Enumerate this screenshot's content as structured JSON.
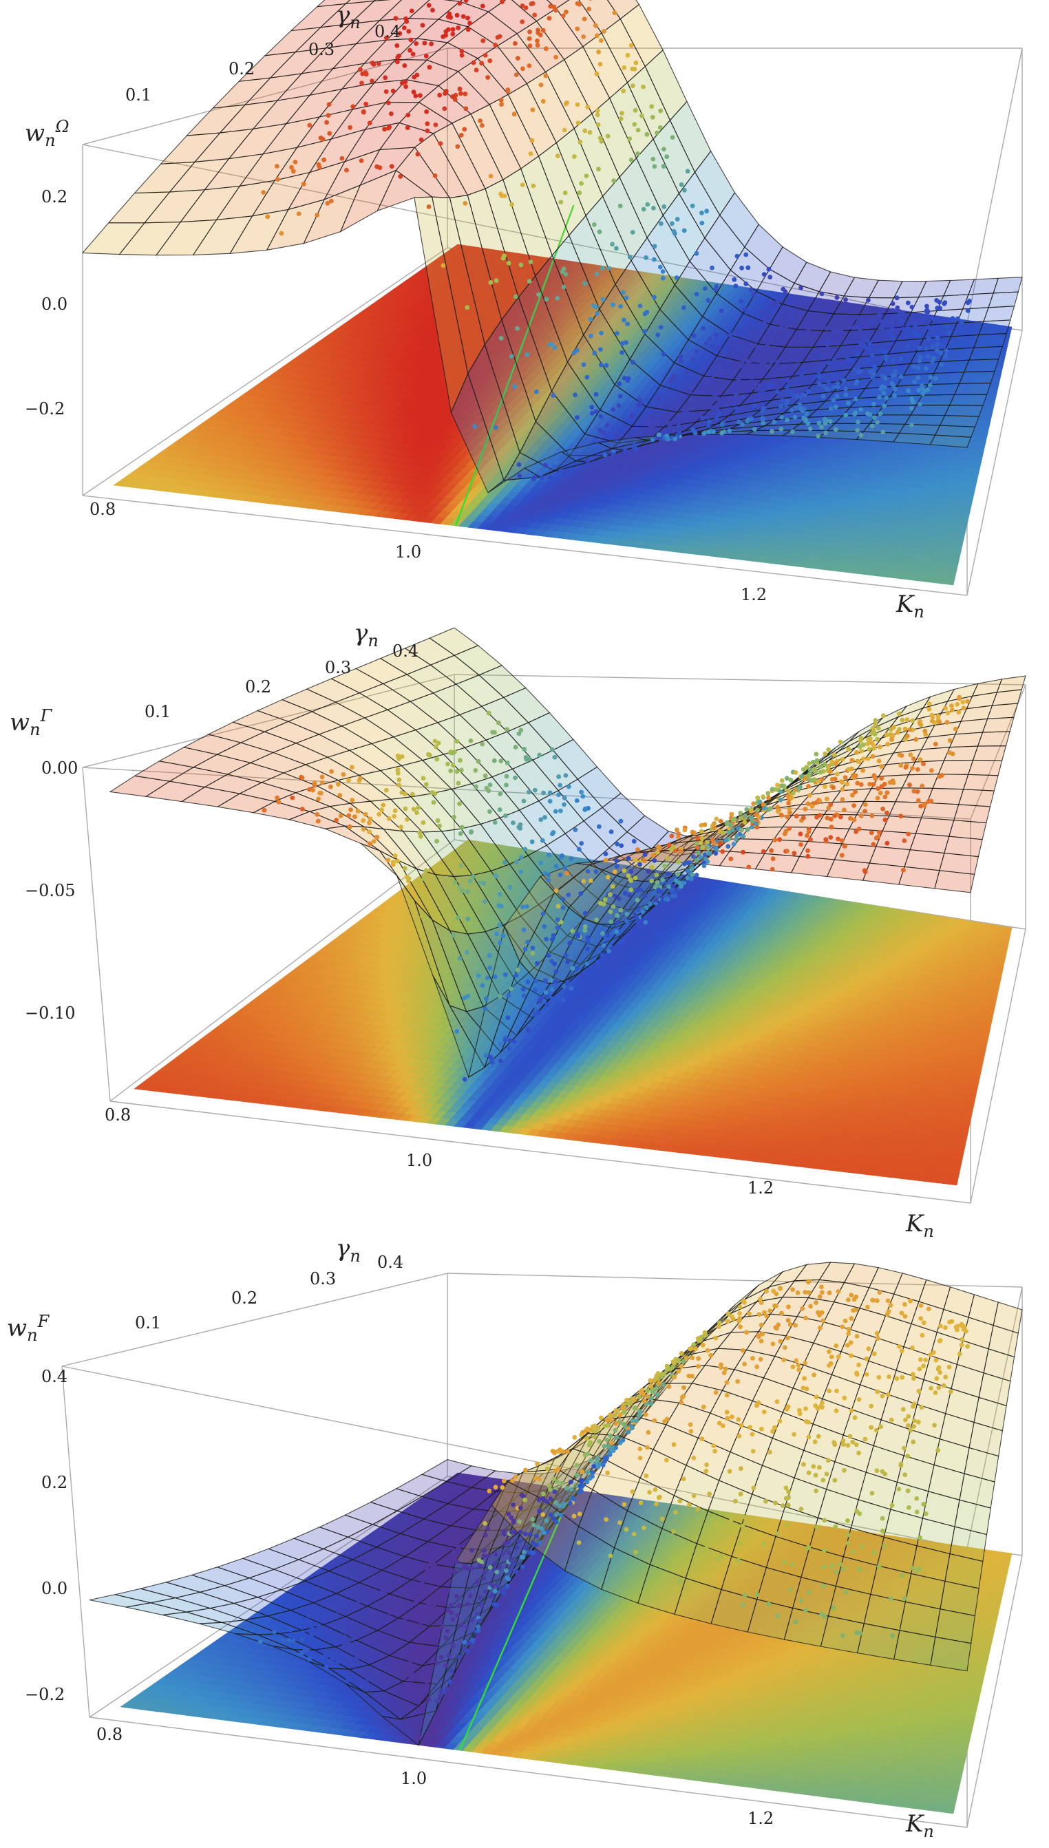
{
  "chart_data": [
    {
      "type": "surface3d",
      "z_label": {
        "base": "w",
        "sub": "n",
        "sup": "Ω"
      },
      "x_label": {
        "base": "K",
        "sub": "n"
      },
      "y_label": {
        "base": "γ",
        "sub": "n"
      },
      "x_ticks": [
        "0.8",
        "1.0",
        "1.2"
      ],
      "y_ticks": [
        "0.1",
        "0.2",
        "0.3",
        "0.4"
      ],
      "z_ticks": [
        "0.2",
        "0.0",
        "−0.2"
      ],
      "xlim": [
        0.78,
        1.32
      ],
      "ylim": [
        0.0,
        0.42
      ],
      "zlim": [
        -0.36,
        0.3
      ],
      "surface": {
        "kind": "dispersive",
        "amplitude": 0.32,
        "center": 1.0
      },
      "colors": [
        "#5b2d8c",
        "#2e4fc9",
        "#3c8fc9",
        "#6aab8a",
        "#a6bc4e",
        "#e2b33a",
        "#e2782a",
        "#d42a20"
      ],
      "green_line": "#33dd33"
    },
    {
      "type": "surface3d",
      "z_label": {
        "base": "w",
        "sub": "n",
        "sup": "Γ"
      },
      "x_label": {
        "base": "K",
        "sub": "n"
      },
      "y_label": {
        "base": "γ",
        "sub": "n"
      },
      "x_ticks": [
        "0.8",
        "1.0",
        "1.2"
      ],
      "y_ticks": [
        "0.1",
        "0.2",
        "0.3",
        "0.4"
      ],
      "z_ticks": [
        "0.00",
        "−0.05",
        "−0.10"
      ],
      "xlim": [
        0.78,
        1.32
      ],
      "ylim": [
        0.0,
        0.42
      ],
      "zlim": [
        -0.14,
        0.01
      ],
      "surface": {
        "kind": "absorptive",
        "amplitude": 0.13,
        "center": 1.0
      },
      "colors": [
        "#5b2d8c",
        "#2e4fc9",
        "#3c8fc9",
        "#6aab8a",
        "#a6bc4e",
        "#e2b33a",
        "#e2782a",
        "#d42a20"
      ]
    },
    {
      "type": "surface3d",
      "z_label": {
        "base": "w",
        "sub": "n",
        "sup": "F"
      },
      "x_label": {
        "base": "K",
        "sub": "n"
      },
      "y_label": {
        "base": "γ",
        "sub": "n"
      },
      "x_ticks": [
        "0.8",
        "1.0",
        "1.2"
      ],
      "y_ticks": [
        "0.1",
        "0.2",
        "0.3",
        "0.4"
      ],
      "z_ticks": [
        "0.4",
        "0.2",
        "0.0",
        "−0.2"
      ],
      "xlim": [
        0.78,
        1.32
      ],
      "ylim": [
        0.0,
        0.42
      ],
      "zlim": [
        -0.28,
        0.42
      ],
      "surface": {
        "kind": "antidispersive",
        "amplitude": 0.32,
        "center": 1.0
      },
      "colors": [
        "#5b2d8c",
        "#2e4fc9",
        "#3c8fc9",
        "#6aab8a",
        "#a6bc4e",
        "#e2b33a",
        "#e2782a",
        "#d42a20"
      ],
      "green_line": "#33dd33"
    }
  ]
}
